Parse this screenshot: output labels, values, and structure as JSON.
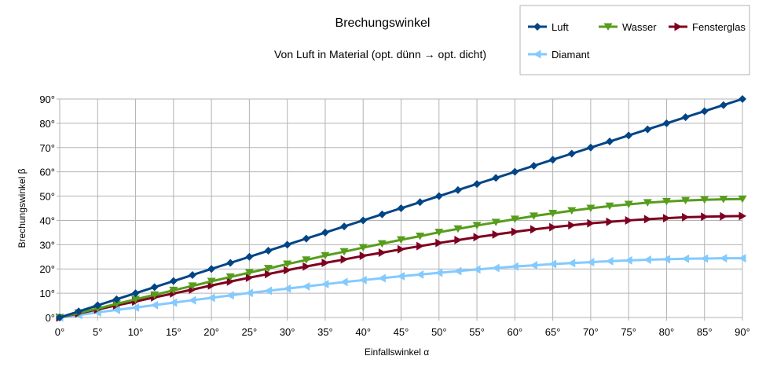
{
  "chart_data": {
    "type": "line",
    "title": "Brechungswinkel",
    "subtitle": "Von Luft in Material (opt. dünn → opt. dicht)",
    "xlabel": "Einfallswinkel α",
    "ylabel": "Brechungswinkel β",
    "xlim": [
      0,
      90
    ],
    "ylim": [
      0,
      90
    ],
    "x_ticks": [
      0,
      5,
      10,
      15,
      20,
      25,
      30,
      35,
      40,
      45,
      50,
      55,
      60,
      65,
      70,
      75,
      80,
      85,
      90
    ],
    "y_ticks": [
      0,
      10,
      20,
      30,
      40,
      50,
      60,
      70,
      80,
      90
    ],
    "x_tick_labels": [
      "0°",
      "5°",
      "10°",
      "15°",
      "20°",
      "25°",
      "30°",
      "35°",
      "40°",
      "45°",
      "50°",
      "55°",
      "60°",
      "65°",
      "70°",
      "75°",
      "80°",
      "85°",
      "90°"
    ],
    "y_tick_labels": [
      "0°",
      "10°",
      "20°",
      "30°",
      "40°",
      "50°",
      "60°",
      "70°",
      "80°",
      "90°"
    ],
    "grid": true,
    "legend_position": "top-right",
    "x": [
      0,
      2.5,
      5,
      7.5,
      10,
      12.5,
      15,
      17.5,
      20,
      22.5,
      25,
      27.5,
      30,
      32.5,
      35,
      37.5,
      40,
      42.5,
      45,
      47.5,
      50,
      52.5,
      55,
      57.5,
      60,
      62.5,
      65,
      67.5,
      70,
      72.5,
      75,
      77.5,
      80,
      82.5,
      85,
      87.5,
      90
    ],
    "series": [
      {
        "name": "Luft",
        "color": "#004586",
        "marker": "diamond",
        "values": [
          0,
          2.5,
          5,
          7.5,
          10,
          12.5,
          15,
          17.5,
          20,
          22.5,
          25,
          27.5,
          30,
          32.5,
          35,
          37.5,
          40,
          42.5,
          45,
          47.5,
          50,
          52.5,
          55,
          57.5,
          60,
          62.5,
          65,
          67.5,
          70,
          72.5,
          75,
          77.5,
          80,
          82.5,
          85,
          87.5,
          90
        ]
      },
      {
        "name": "Wasser",
        "color": "#579d1c",
        "marker": "triangle-down",
        "values": [
          0,
          1.9,
          3.7,
          5.6,
          7.5,
          9.3,
          11.2,
          13.0,
          14.9,
          16.7,
          18.5,
          20.2,
          22.0,
          23.7,
          25.5,
          27.1,
          28.8,
          30.4,
          32.0,
          33.5,
          35.1,
          36.5,
          37.9,
          39.2,
          40.5,
          41.8,
          42.9,
          44.0,
          45.0,
          45.9,
          46.6,
          47.3,
          47.8,
          48.2,
          48.5,
          48.7,
          48.8
        ]
      },
      {
        "name": "Fensterglas",
        "color": "#7e0021",
        "marker": "triangle-right",
        "values": [
          0,
          1.7,
          3.3,
          5.0,
          6.6,
          8.3,
          9.9,
          11.5,
          13.2,
          14.8,
          16.4,
          17.9,
          19.5,
          21.0,
          22.5,
          23.9,
          25.4,
          26.7,
          28.1,
          29.4,
          30.7,
          31.9,
          33.1,
          34.2,
          35.3,
          36.3,
          37.2,
          38.0,
          38.8,
          39.4,
          40.0,
          40.5,
          40.9,
          41.3,
          41.5,
          41.7,
          41.8
        ]
      },
      {
        "name": "Diamant",
        "color": "#83caff",
        "marker": "triangle-left",
        "values": [
          0,
          1.0,
          2.1,
          3.1,
          4.1,
          5.1,
          6.1,
          7.1,
          8.1,
          9.1,
          10.1,
          11.0,
          11.9,
          12.8,
          13.7,
          14.6,
          15.4,
          16.2,
          17.0,
          17.7,
          18.4,
          19.1,
          19.8,
          20.4,
          21.0,
          21.5,
          22.0,
          22.4,
          22.8,
          23.2,
          23.5,
          23.8,
          24.0,
          24.2,
          24.3,
          24.4,
          24.4
        ]
      }
    ]
  }
}
